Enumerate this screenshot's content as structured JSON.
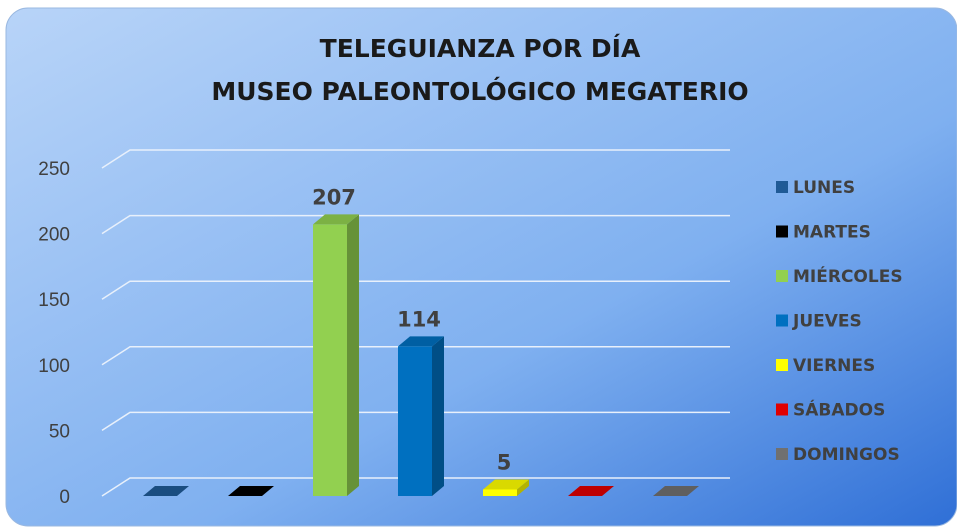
{
  "chart_data": {
    "type": "bar3d",
    "title": [
      "TELEGUIANZA POR DÍA",
      "MUSEO PALEONTOLÓGICO MEGATERIO"
    ],
    "series": [
      {
        "name": "LUNES",
        "color": "#1f5a96",
        "values": [
          0
        ]
      },
      {
        "name": "MARTES",
        "color": "#000000",
        "values": [
          0
        ]
      },
      {
        "name": "MIÉRCOLES",
        "color": "#92d050",
        "values": [
          207
        ],
        "value_labels": [
          "207"
        ]
      },
      {
        "name": "JUEVES",
        "color": "#0070c0",
        "values": [
          114
        ],
        "value_labels": [
          "114"
        ]
      },
      {
        "name": "VIERNES",
        "color": "#ffff00",
        "values": [
          5
        ],
        "value_labels": [
          "5"
        ]
      },
      {
        "name": "SÁBADOS",
        "color": "#e00000",
        "values": [
          0
        ]
      },
      {
        "name": "DOMINGOS",
        "color": "#707070",
        "values": [
          0
        ]
      }
    ],
    "ylim": [
      0,
      250
    ],
    "yticks": [
      0,
      50,
      100,
      150,
      200,
      250
    ],
    "grid": true,
    "legend": "right"
  }
}
